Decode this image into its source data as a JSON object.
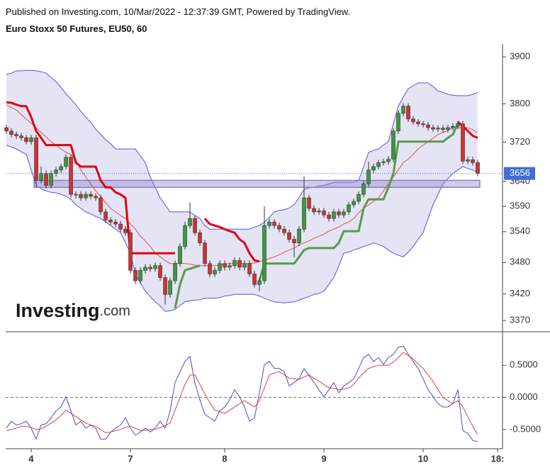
{
  "header": {
    "published": "Published on Investing.com, 10/Mar/2022 - 12:37:39 GMT, Powered by TradingView.",
    "title": "Euro Stoxx 50 Futures, EU50, 60"
  },
  "logo": {
    "main": "Investing",
    "suffix": ".com"
  },
  "chart_data": [
    {
      "type": "candlestick",
      "log": true,
      "ylim": [
        3349,
        3928
      ],
      "yticks": [
        3900,
        3800,
        3720,
        3640,
        3590,
        3540,
        3480,
        3420,
        3370
      ],
      "xlim": [
        -0.15,
        100
      ],
      "up_color": "#3a9a3a",
      "down_color": "#d23030",
      "last_color": "#3d6fd6",
      "open": [
        3750,
        3743,
        3736,
        3733,
        3729,
        3721,
        3729,
        3642,
        3656,
        3632,
        3656,
        3663,
        3670,
        3689,
        3614,
        3614,
        3607,
        3614,
        3610,
        3607,
        3579,
        3563,
        3559,
        3555,
        3545,
        3538,
        3465,
        3445,
        3465,
        3471,
        3468,
        3474,
        3451,
        3419,
        3445,
        3478,
        3511,
        3552,
        3566,
        3538,
        3518,
        3478,
        3458,
        3465,
        3478,
        3471,
        3474,
        3484,
        3471,
        3478,
        3458,
        3438,
        3445,
        3552,
        3559,
        3552,
        3545,
        3538,
        3525,
        3518,
        3545,
        3607,
        3586,
        3579,
        3581,
        3573,
        3566,
        3579,
        3573,
        3579,
        3593,
        3600,
        3614,
        3635,
        3663,
        3670,
        3678,
        3680,
        3685,
        3743,
        3780,
        3795,
        3768,
        3762,
        3758,
        3756,
        3750,
        3747,
        3749,
        3746,
        3750,
        3753,
        3758,
        3681,
        3684,
        3678
      ],
      "high": [
        3756,
        3749,
        3742,
        3739,
        3735,
        3735,
        3735,
        3670,
        3662,
        3662,
        3669,
        3676,
        3695,
        3695,
        3620,
        3620,
        3620,
        3620,
        3616,
        3613,
        3585,
        3569,
        3565,
        3561,
        3551,
        3544,
        3471,
        3471,
        3477,
        3477,
        3480,
        3480,
        3457,
        3451,
        3484,
        3517,
        3560,
        3598,
        3572,
        3544,
        3524,
        3484,
        3471,
        3484,
        3484,
        3480,
        3490,
        3490,
        3484,
        3484,
        3464,
        3451,
        3590,
        3565,
        3565,
        3558,
        3551,
        3544,
        3531,
        3551,
        3650,
        3613,
        3592,
        3587,
        3587,
        3579,
        3585,
        3585,
        3585,
        3599,
        3606,
        3620,
        3641,
        3680,
        3676,
        3684,
        3686,
        3691,
        3749,
        3786,
        3801,
        3801,
        3774,
        3768,
        3764,
        3762,
        3756,
        3755,
        3755,
        3756,
        3759,
        3764,
        3764,
        3690,
        3690,
        3684
      ],
      "low": [
        3737,
        3730,
        3727,
        3723,
        3715,
        3715,
        3628,
        3636,
        3626,
        3626,
        3650,
        3657,
        3664,
        3608,
        3606,
        3601,
        3601,
        3604,
        3601,
        3573,
        3557,
        3553,
        3549,
        3539,
        3532,
        3459,
        3439,
        3439,
        3459,
        3462,
        3462,
        3445,
        3400,
        3413,
        3439,
        3472,
        3505,
        3546,
        3532,
        3512,
        3472,
        3452,
        3452,
        3459,
        3465,
        3465,
        3468,
        3465,
        3465,
        3452,
        3432,
        3425,
        3439,
        3546,
        3546,
        3539,
        3532,
        3519,
        3490,
        3512,
        3539,
        3580,
        3573,
        3573,
        3567,
        3560,
        3560,
        3567,
        3567,
        3573,
        3587,
        3594,
        3608,
        3629,
        3657,
        3664,
        3672,
        3674,
        3679,
        3737,
        3774,
        3762,
        3756,
        3752,
        3750,
        3744,
        3741,
        3741,
        3740,
        3740,
        3744,
        3747,
        3675,
        3675,
        3672,
        3650
      ],
      "close": [
        3743,
        3736,
        3733,
        3729,
        3721,
        3729,
        3642,
        3656,
        3632,
        3656,
        3663,
        3670,
        3689,
        3614,
        3614,
        3607,
        3614,
        3610,
        3607,
        3579,
        3563,
        3559,
        3555,
        3545,
        3538,
        3465,
        3445,
        3465,
        3471,
        3468,
        3474,
        3451,
        3419,
        3445,
        3478,
        3511,
        3552,
        3566,
        3538,
        3518,
        3478,
        3458,
        3465,
        3478,
        3471,
        3474,
        3484,
        3471,
        3478,
        3458,
        3438,
        3445,
        3552,
        3559,
        3552,
        3545,
        3538,
        3525,
        3518,
        3545,
        3607,
        3586,
        3579,
        3581,
        3573,
        3566,
        3579,
        3573,
        3579,
        3593,
        3600,
        3614,
        3635,
        3663,
        3670,
        3678,
        3680,
        3685,
        3743,
        3780,
        3795,
        3768,
        3762,
        3758,
        3756,
        3750,
        3747,
        3749,
        3746,
        3750,
        3753,
        3758,
        3681,
        3684,
        3678,
        3656
      ],
      "bands": {
        "color": "#5656d8",
        "fill": "#e4e4f4",
        "upper": [
          3862,
          3865,
          3870,
          3870,
          3871,
          3871,
          3870,
          3868,
          3865,
          3856,
          3847,
          3835,
          3821,
          3810,
          3798,
          3784,
          3772,
          3761,
          3747,
          3736,
          3725,
          3717,
          3706,
          3706,
          3706,
          3706,
          3706,
          3692,
          3678,
          3649,
          3628,
          3607,
          3593,
          3579,
          3579,
          3579,
          3579,
          3579,
          3572,
          3566,
          3552,
          3545,
          3545,
          3545,
          3545,
          3545,
          3545,
          3545,
          3545,
          3545,
          3549,
          3552,
          3559,
          3568,
          3579,
          3582,
          3583,
          3587,
          3593,
          3608,
          3624,
          3627,
          3628,
          3631,
          3632,
          3635,
          3638,
          3638,
          3638,
          3638,
          3638,
          3642,
          3670,
          3699,
          3703,
          3706,
          3714,
          3721,
          3758,
          3795,
          3814,
          3832,
          3838,
          3844,
          3844,
          3844,
          3836,
          3827,
          3824,
          3820,
          3818,
          3817,
          3817,
          3817,
          3820,
          3824
        ],
        "lower": [
          3714,
          3710,
          3706,
          3700,
          3695,
          3663,
          3632,
          3625,
          3621,
          3618,
          3617,
          3614,
          3610,
          3604,
          3593,
          3586,
          3579,
          3575,
          3570,
          3566,
          3559,
          3552,
          3545,
          3538,
          3518,
          3498,
          3458,
          3441,
          3425,
          3415,
          3405,
          3397,
          3387,
          3388,
          3391,
          3398,
          3405,
          3407,
          3408,
          3409,
          3412,
          3412,
          3412,
          3413,
          3416,
          3417,
          3419,
          3419,
          3419,
          3419,
          3419,
          3416,
          3412,
          3408,
          3405,
          3404,
          3403,
          3404,
          3405,
          3408,
          3412,
          3415,
          3419,
          3421,
          3425,
          3438,
          3451,
          3473,
          3498,
          3500,
          3504,
          3507,
          3511,
          3514,
          3518,
          3515,
          3511,
          3504,
          3498,
          3494,
          3491,
          3500,
          3511,
          3525,
          3538,
          3566,
          3593,
          3614,
          3635,
          3646,
          3656,
          3663,
          3670,
          3666,
          3663,
          3659
        ]
      },
      "basis": {
        "color": "#e05050",
        "values": [
          3798,
          3792,
          3787,
          3777,
          3768,
          3759,
          3750,
          3740,
          3731,
          3721,
          3714,
          3706,
          3699,
          3695,
          3684,
          3663,
          3649,
          3635,
          3621,
          3610,
          3597,
          3586,
          3579,
          3572,
          3566,
          3555,
          3545,
          3531,
          3522,
          3511,
          3498,
          3491,
          3484,
          3478,
          3478,
          3478,
          3478,
          3477,
          3475,
          3474,
          3474,
          3474,
          3474,
          3475,
          3477,
          3478,
          3478,
          3478,
          3478,
          3478,
          3479,
          3482,
          3484,
          3488,
          3491,
          3495,
          3500,
          3504,
          3508,
          3514,
          3518,
          3522,
          3527,
          3531,
          3535,
          3541,
          3545,
          3549,
          3555,
          3559,
          3566,
          3577,
          3586,
          3593,
          3600,
          3607,
          3621,
          3635,
          3649,
          3663,
          3678,
          3685,
          3695,
          3706,
          3714,
          3721,
          3728,
          3736,
          3740,
          3744,
          3750,
          3750,
          3750,
          3750,
          3746,
          3739
        ]
      },
      "supertrend": [
        {
          "color": "#e00010",
          "values": [
            3803,
            3802,
            3798,
            3795,
            3795,
            3772,
            3743,
            3729,
            3714,
            3714,
            3714,
            3714,
            3714,
            3714,
            3678,
            3670,
            3670,
            3670,
            3670,
            3642,
            3628,
            3628,
            3618,
            3614,
            3607,
            3498,
            3498,
            3498,
            3498,
            3498,
            3498,
            3498,
            3498,
            3498,
            3498,
            null,
            null,
            null,
            null,
            null,
            3566,
            3555,
            3552,
            3549,
            3545,
            3541,
            3538,
            3525,
            3518,
            3498,
            3484,
            3482,
            null,
            null,
            null,
            null,
            null,
            null,
            null,
            null,
            null,
            null,
            null,
            null,
            null,
            null,
            null,
            null,
            null,
            null,
            null,
            null,
            null,
            null,
            null,
            null,
            null,
            null,
            null,
            null,
            null,
            null,
            null,
            null,
            null,
            null,
            null,
            null,
            null,
            null,
            null,
            3762,
            3753,
            3743,
            3733,
            3729
          ]
        },
        {
          "color": "#5a9a4a",
          "values": [
            null,
            null,
            null,
            null,
            null,
            null,
            null,
            null,
            null,
            null,
            null,
            null,
            null,
            null,
            null,
            null,
            null,
            null,
            null,
            null,
            null,
            null,
            null,
            null,
            null,
            null,
            null,
            null,
            null,
            null,
            null,
            null,
            null,
            null,
            3393,
            3438,
            3465,
            3468,
            3471,
            3474,
            null,
            null,
            null,
            null,
            null,
            null,
            null,
            null,
            null,
            null,
            null,
            3445,
            3478,
            3478,
            3478,
            3478,
            3478,
            3478,
            3478,
            3491,
            3504,
            3508,
            3508,
            3508,
            3508,
            3508,
            3508,
            3518,
            3541,
            3541,
            3541,
            3541,
            3586,
            3604,
            3604,
            3604,
            3604,
            3628,
            3656,
            3721,
            3721,
            3721,
            3721,
            3721,
            3721,
            3721,
            3721,
            3721,
            3721,
            3729,
            3736,
            3758,
            null,
            null,
            null,
            null
          ]
        }
      ],
      "zone": {
        "low": 3628,
        "high": 3642,
        "from": 6,
        "to": 95,
        "color": "#8f7fc8"
      }
    },
    {
      "type": "line",
      "ylim": [
        -0.8,
        1.0
      ],
      "xlim": [
        -0.15,
        100
      ],
      "hline": 0,
      "yticks": [
        {
          "value": 0.5,
          "label": "0.5000"
        },
        {
          "value": 0,
          "label": "0.0000"
        },
        {
          "value": -0.5,
          "label": "-0.5000"
        }
      ],
      "xticks": [
        {
          "value": 5,
          "label": "4"
        },
        {
          "value": 25,
          "label": "7"
        },
        {
          "value": 44,
          "label": "8"
        },
        {
          "value": 64,
          "label": "9"
        },
        {
          "value": 84,
          "label": "10"
        },
        {
          "value": 99,
          "label": "18:"
        }
      ],
      "series": [
        {
          "color": "#4b4bc8",
          "values": [
            -0.48,
            -0.37,
            -0.43,
            -0.41,
            -0.37,
            -0.48,
            -0.65,
            -0.43,
            -0.41,
            -0.32,
            -0.21,
            -0.15,
            0.01,
            -0.21,
            -0.43,
            -0.37,
            -0.48,
            -0.43,
            -0.48,
            -0.65,
            -0.65,
            -0.54,
            -0.48,
            -0.43,
            -0.32,
            -0.48,
            -0.59,
            -0.54,
            -0.48,
            -0.54,
            -0.48,
            -0.37,
            -0.48,
            -0.21,
            0.23,
            0.4,
            0.56,
            0.64,
            0.23,
            -0.04,
            -0.26,
            -0.32,
            -0.37,
            -0.21,
            -0.15,
            -0.04,
            0.12,
            0.01,
            -0.15,
            -0.37,
            -0.32,
            0.07,
            0.51,
            0.56,
            0.45,
            0.45,
            0.4,
            0.18,
            0.23,
            0.29,
            0.45,
            0.34,
            0.23,
            0.12,
            0.01,
            0.12,
            0.23,
            0.07,
            0.18,
            0.23,
            0.29,
            0.45,
            0.62,
            0.67,
            0.56,
            0.62,
            0.51,
            0.62,
            0.67,
            0.78,
            0.8,
            0.67,
            0.56,
            0.45,
            0.29,
            0.12,
            0.01,
            -0.1,
            -0.15,
            -0.15,
            -0.1,
            0.12,
            -0.52,
            -0.56,
            -0.67,
            -0.69
          ]
        },
        {
          "color": "#e04040",
          "values": [
            -0.52,
            -0.5,
            -0.48,
            -0.45,
            -0.45,
            -0.47,
            -0.5,
            -0.49,
            -0.45,
            -0.4,
            -0.35,
            -0.28,
            -0.2,
            -0.25,
            -0.3,
            -0.35,
            -0.4,
            -0.43,
            -0.45,
            -0.5,
            -0.55,
            -0.54,
            -0.52,
            -0.5,
            -0.47,
            -0.45,
            -0.48,
            -0.52,
            -0.51,
            -0.5,
            -0.5,
            -0.47,
            -0.44,
            -0.4,
            -0.2,
            0.0,
            0.2,
            0.35,
            0.35,
            0.2,
            0.05,
            -0.08,
            -0.2,
            -0.22,
            -0.25,
            -0.2,
            -0.15,
            -0.1,
            -0.05,
            -0.1,
            -0.15,
            -0.05,
            0.15,
            0.35,
            0.38,
            0.4,
            0.35,
            0.3,
            0.29,
            0.28,
            0.32,
            0.35,
            0.3,
            0.25,
            0.2,
            0.15,
            0.14,
            0.12,
            0.13,
            0.15,
            0.2,
            0.3,
            0.38,
            0.45,
            0.48,
            0.5,
            0.5,
            0.5,
            0.55,
            0.62,
            0.7,
            0.65,
            0.6,
            0.52,
            0.45,
            0.35,
            0.25,
            0.12,
            0.0,
            -0.05,
            -0.1,
            -0.05,
            -0.15,
            -0.3,
            -0.45,
            -0.58
          ]
        }
      ]
    }
  ]
}
